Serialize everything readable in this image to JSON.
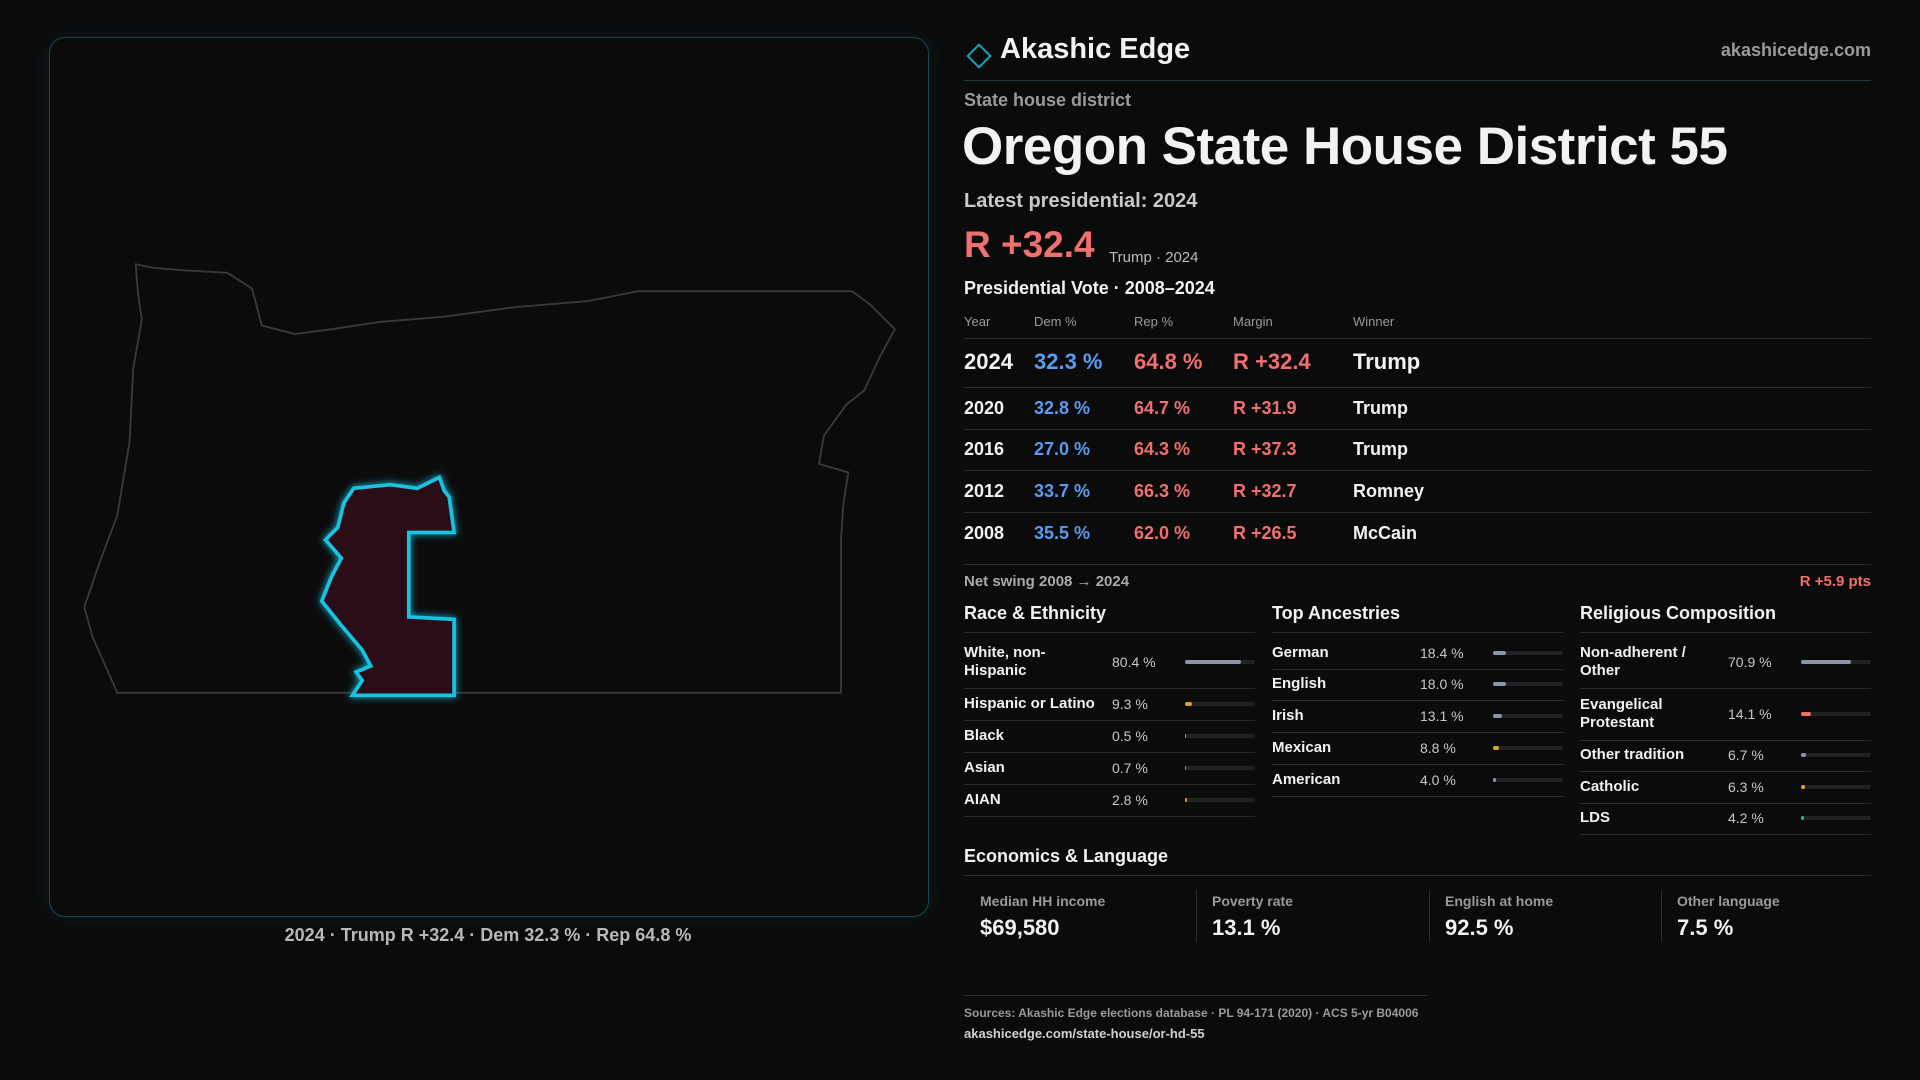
{
  "brand": {
    "name": "Akashic Edge",
    "site": "akashicedge.com"
  },
  "kicker": "State house district",
  "title": "Oregon State House District 55",
  "latest_label": "Latest presidential: 2024",
  "headline_margin": "R +32.4",
  "headline_note": "Trump · 2024",
  "map_caption": "2024 · Trump R +32.4 · Dem 32.3 % · Rep 64.8 %",
  "vote_table": {
    "title": "Presidential Vote · 2008–2024",
    "columns": [
      "Year",
      "Dem %",
      "Rep %",
      "Margin",
      "Winner"
    ],
    "rows": [
      [
        "2024",
        "32.3 %",
        "64.8 %",
        "R +32.4",
        "Trump"
      ],
      [
        "2020",
        "32.8 %",
        "64.7 %",
        "R +31.9",
        "Trump"
      ],
      [
        "2016",
        "27.0 %",
        "64.3 %",
        "R +37.3",
        "Trump"
      ],
      [
        "2012",
        "33.7 %",
        "66.3 %",
        "R +32.7",
        "Romney"
      ],
      [
        "2008",
        "35.5 %",
        "62.0 %",
        "R +26.5",
        "McCain"
      ]
    ]
  },
  "net_swing": {
    "label": "Net swing 2008 → 2024",
    "value": "R +5.9 pts"
  },
  "panels": [
    {
      "title": "Race & Ethnicity",
      "rows": [
        {
          "label": "White, non-Hispanic",
          "value": 80.4,
          "value_label": "80.4 %",
          "color": "#8c96a8"
        },
        {
          "label": "Hispanic or Latino",
          "value": 9.3,
          "value_label": "9.3 %",
          "color": "#e0a030"
        },
        {
          "label": "Black",
          "value": 0.5,
          "value_label": "0.5 %",
          "color": "#8c96a8"
        },
        {
          "label": "Asian",
          "value": 0.7,
          "value_label": "0.7 %",
          "color": "#2bb5a0"
        },
        {
          "label": "AIAN",
          "value": 2.8,
          "value_label": "2.8 %",
          "color": "#e0a030"
        }
      ]
    },
    {
      "title": "Top Ancestries",
      "rows": [
        {
          "label": "German",
          "value": 18.4,
          "value_label": "18.4 %",
          "color": "#8c96a8"
        },
        {
          "label": "English",
          "value": 18.0,
          "value_label": "18.0 %",
          "color": "#8c96a8"
        },
        {
          "label": "Irish",
          "value": 13.1,
          "value_label": "13.1 %",
          "color": "#8c96a8"
        },
        {
          "label": "Mexican",
          "value": 8.8,
          "value_label": "8.8 %",
          "color": "#e0a030"
        },
        {
          "label": "American",
          "value": 4.0,
          "value_label": "4.0 %",
          "color": "#8c96a8"
        }
      ]
    },
    {
      "title": "Religious Composition",
      "rows": [
        {
          "label": "Non-adherent / Other",
          "value": 70.9,
          "value_label": "70.9 %",
          "color": "#8c96a8"
        },
        {
          "label": "Evangelical Protestant",
          "value": 14.1,
          "value_label": "14.1 %",
          "color": "#f07070"
        },
        {
          "label": "Other tradition",
          "value": 6.7,
          "value_label": "6.7 %",
          "color": "#8c96a8"
        },
        {
          "label": "Catholic",
          "value": 6.3,
          "value_label": "6.3 %",
          "color": "#e0a030"
        },
        {
          "label": "LDS",
          "value": 4.2,
          "value_label": "4.2 %",
          "color": "#2bb5a0"
        }
      ]
    }
  ],
  "economics": {
    "title": "Economics & Language",
    "items": [
      {
        "label": "Median HH income",
        "value": "$69,580"
      },
      {
        "label": "Poverty rate",
        "value": "13.1 %"
      },
      {
        "label": "English at home",
        "value": "92.5 %"
      },
      {
        "label": "Other language",
        "value": "7.5 %"
      }
    ]
  },
  "sources": {
    "text": "Sources: Akashic Edge elections database · PL 94-171 (2020) · ACS 5-yr B04006",
    "url": "akashicedge.com/state-house/or-hd-55"
  }
}
